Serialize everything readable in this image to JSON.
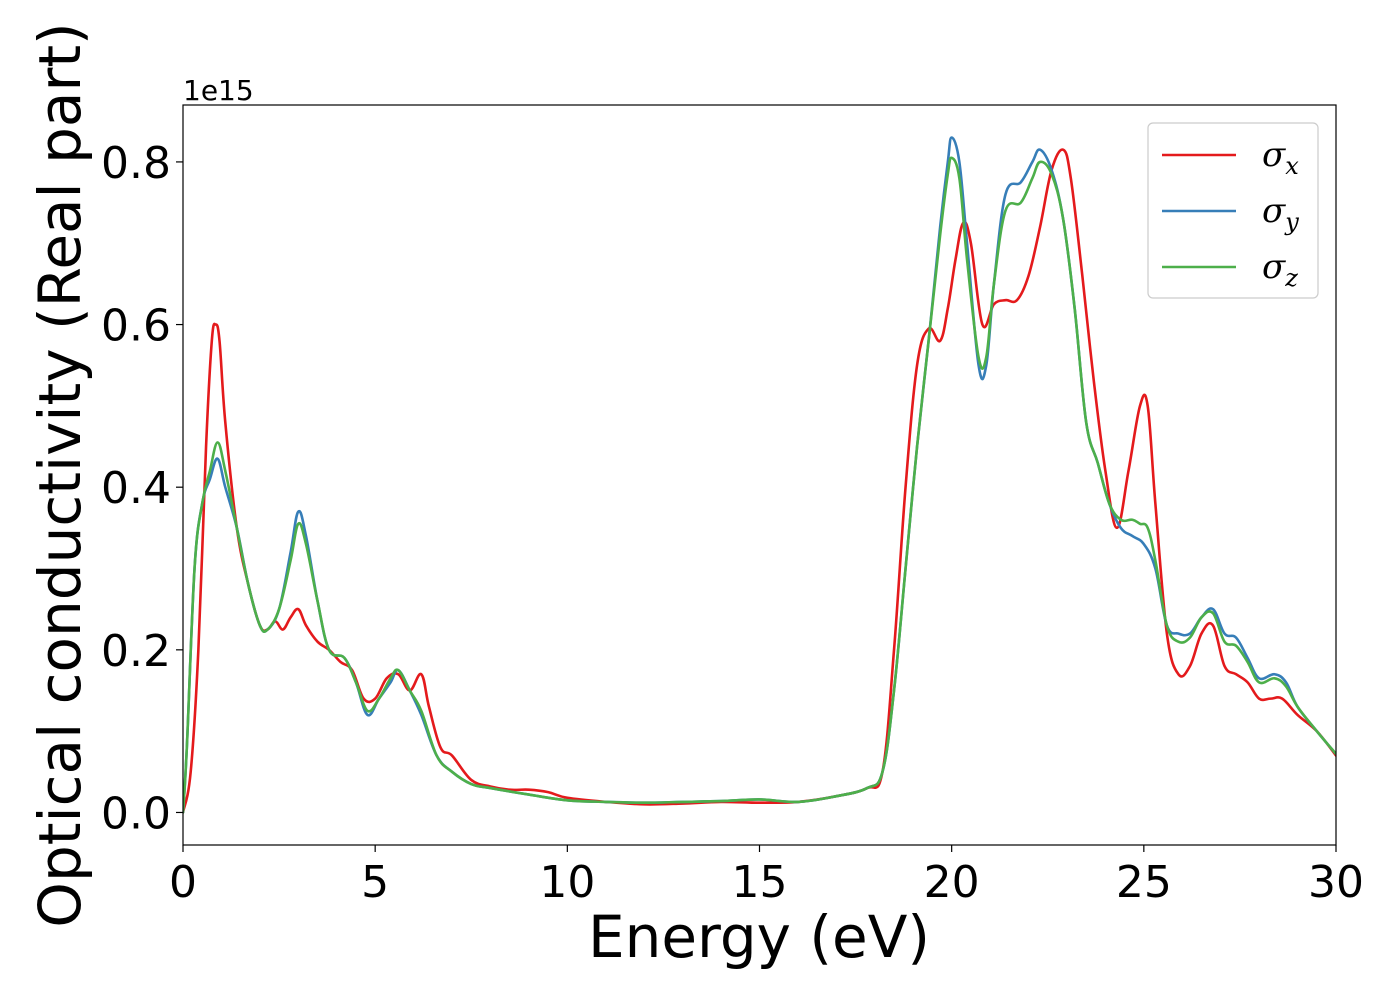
{
  "chart_data": {
    "type": "line",
    "xlabel": "Energy (eV)",
    "ylabel": "Optical conductivity (Real part)",
    "y_offset_text": "1e15",
    "xlim": [
      0,
      30
    ],
    "ylim": [
      -0.04,
      0.87
    ],
    "x_ticks": [
      0,
      5,
      10,
      15,
      20,
      25,
      30
    ],
    "x_tick_labels": [
      "0",
      "5",
      "10",
      "15",
      "20",
      "25",
      "30"
    ],
    "y_ticks": [
      0.0,
      0.2,
      0.4,
      0.6,
      0.8
    ],
    "y_tick_labels": [
      "0.0",
      "0.2",
      "0.4",
      "0.6",
      "0.8"
    ],
    "grid": false,
    "legend_position": "top-right",
    "series": [
      {
        "name": "σx",
        "symbol": "σ",
        "subscript": "x",
        "color": "#e41a1c",
        "points": [
          [
            0,
            0.0
          ],
          [
            0.2,
            0.05
          ],
          [
            0.4,
            0.2
          ],
          [
            0.6,
            0.45
          ],
          [
            0.75,
            0.58
          ],
          [
            0.85,
            0.6
          ],
          [
            0.95,
            0.58
          ],
          [
            1.1,
            0.48
          ],
          [
            1.4,
            0.35
          ],
          [
            1.7,
            0.28
          ],
          [
            2.0,
            0.23
          ],
          [
            2.2,
            0.225
          ],
          [
            2.4,
            0.235
          ],
          [
            2.6,
            0.225
          ],
          [
            2.8,
            0.24
          ],
          [
            3.0,
            0.25
          ],
          [
            3.2,
            0.23
          ],
          [
            3.5,
            0.21
          ],
          [
            3.8,
            0.2
          ],
          [
            4.1,
            0.185
          ],
          [
            4.4,
            0.175
          ],
          [
            4.7,
            0.14
          ],
          [
            5.0,
            0.14
          ],
          [
            5.3,
            0.165
          ],
          [
            5.6,
            0.17
          ],
          [
            5.9,
            0.15
          ],
          [
            6.2,
            0.17
          ],
          [
            6.4,
            0.13
          ],
          [
            6.7,
            0.08
          ],
          [
            7.0,
            0.07
          ],
          [
            7.5,
            0.04
          ],
          [
            8.0,
            0.032
          ],
          [
            8.5,
            0.028
          ],
          [
            9.0,
            0.028
          ],
          [
            9.5,
            0.025
          ],
          [
            10.0,
            0.018
          ],
          [
            11,
            0.013
          ],
          [
            12,
            0.01
          ],
          [
            13,
            0.011
          ],
          [
            14,
            0.013
          ],
          [
            15,
            0.012
          ],
          [
            16,
            0.013
          ],
          [
            17,
            0.02
          ],
          [
            17.8,
            0.03
          ],
          [
            18.2,
            0.05
          ],
          [
            18.5,
            0.2
          ],
          [
            18.8,
            0.4
          ],
          [
            19.1,
            0.55
          ],
          [
            19.4,
            0.595
          ],
          [
            19.7,
            0.58
          ],
          [
            19.9,
            0.62
          ],
          [
            20.1,
            0.68
          ],
          [
            20.3,
            0.725
          ],
          [
            20.5,
            0.7
          ],
          [
            20.8,
            0.6
          ],
          [
            21.1,
            0.625
          ],
          [
            21.4,
            0.63
          ],
          [
            21.7,
            0.63
          ],
          [
            22.0,
            0.66
          ],
          [
            22.3,
            0.72
          ],
          [
            22.6,
            0.79
          ],
          [
            22.9,
            0.815
          ],
          [
            23.1,
            0.78
          ],
          [
            23.4,
            0.66
          ],
          [
            23.7,
            0.53
          ],
          [
            24.0,
            0.42
          ],
          [
            24.3,
            0.35
          ],
          [
            24.6,
            0.42
          ],
          [
            24.9,
            0.5
          ],
          [
            25.1,
            0.5
          ],
          [
            25.3,
            0.38
          ],
          [
            25.6,
            0.22
          ],
          [
            25.9,
            0.17
          ],
          [
            26.2,
            0.18
          ],
          [
            26.5,
            0.22
          ],
          [
            26.8,
            0.23
          ],
          [
            27.1,
            0.18
          ],
          [
            27.4,
            0.17
          ],
          [
            27.7,
            0.16
          ],
          [
            28.0,
            0.14
          ],
          [
            28.3,
            0.14
          ],
          [
            28.6,
            0.14
          ],
          [
            29.0,
            0.12
          ],
          [
            29.5,
            0.1
          ],
          [
            30.0,
            0.07
          ]
        ]
      },
      {
        "name": "σy",
        "symbol": "σ",
        "subscript": "y",
        "color": "#377eb8",
        "points": [
          [
            0,
            0.0
          ],
          [
            0.1,
            0.08
          ],
          [
            0.3,
            0.3
          ],
          [
            0.5,
            0.38
          ],
          [
            0.7,
            0.41
          ],
          [
            0.9,
            0.435
          ],
          [
            1.1,
            0.4
          ],
          [
            1.4,
            0.35
          ],
          [
            1.7,
            0.28
          ],
          [
            2.0,
            0.23
          ],
          [
            2.2,
            0.225
          ],
          [
            2.5,
            0.25
          ],
          [
            2.8,
            0.32
          ],
          [
            3.0,
            0.37
          ],
          [
            3.2,
            0.34
          ],
          [
            3.5,
            0.26
          ],
          [
            3.8,
            0.2
          ],
          [
            4.2,
            0.19
          ],
          [
            4.5,
            0.16
          ],
          [
            4.8,
            0.12
          ],
          [
            5.1,
            0.14
          ],
          [
            5.4,
            0.16
          ],
          [
            5.6,
            0.175
          ],
          [
            5.9,
            0.15
          ],
          [
            6.2,
            0.12
          ],
          [
            6.6,
            0.07
          ],
          [
            7.0,
            0.05
          ],
          [
            7.5,
            0.035
          ],
          [
            8.0,
            0.03
          ],
          [
            9,
            0.022
          ],
          [
            10,
            0.015
          ],
          [
            11,
            0.013
          ],
          [
            12,
            0.012
          ],
          [
            13,
            0.013
          ],
          [
            14,
            0.014
          ],
          [
            15,
            0.016
          ],
          [
            16,
            0.013
          ],
          [
            17,
            0.02
          ],
          [
            17.8,
            0.03
          ],
          [
            18.2,
            0.05
          ],
          [
            18.5,
            0.15
          ],
          [
            18.8,
            0.3
          ],
          [
            19.1,
            0.45
          ],
          [
            19.4,
            0.58
          ],
          [
            19.7,
            0.72
          ],
          [
            19.9,
            0.8
          ],
          [
            20.0,
            0.83
          ],
          [
            20.2,
            0.8
          ],
          [
            20.4,
            0.7
          ],
          [
            20.7,
            0.55
          ],
          [
            20.9,
            0.55
          ],
          [
            21.1,
            0.65
          ],
          [
            21.4,
            0.76
          ],
          [
            21.8,
            0.775
          ],
          [
            22.1,
            0.8
          ],
          [
            22.3,
            0.815
          ],
          [
            22.6,
            0.79
          ],
          [
            22.9,
            0.73
          ],
          [
            23.2,
            0.62
          ],
          [
            23.5,
            0.48
          ],
          [
            23.8,
            0.43
          ],
          [
            24.1,
            0.38
          ],
          [
            24.4,
            0.35
          ],
          [
            24.7,
            0.34
          ],
          [
            25.0,
            0.33
          ],
          [
            25.3,
            0.3
          ],
          [
            25.6,
            0.23
          ],
          [
            25.9,
            0.22
          ],
          [
            26.2,
            0.22
          ],
          [
            26.5,
            0.24
          ],
          [
            26.8,
            0.25
          ],
          [
            27.1,
            0.22
          ],
          [
            27.4,
            0.215
          ],
          [
            27.7,
            0.19
          ],
          [
            28.0,
            0.165
          ],
          [
            28.4,
            0.17
          ],
          [
            28.7,
            0.16
          ],
          [
            29.0,
            0.13
          ],
          [
            29.5,
            0.1
          ],
          [
            30.0,
            0.072
          ]
        ]
      },
      {
        "name": "σz",
        "symbol": "σ",
        "subscript": "z",
        "color": "#4daf4a",
        "points": [
          [
            0,
            0.0
          ],
          [
            0.1,
            0.08
          ],
          [
            0.3,
            0.3
          ],
          [
            0.5,
            0.38
          ],
          [
            0.7,
            0.42
          ],
          [
            0.9,
            0.455
          ],
          [
            1.1,
            0.42
          ],
          [
            1.4,
            0.35
          ],
          [
            1.7,
            0.28
          ],
          [
            2.0,
            0.23
          ],
          [
            2.2,
            0.225
          ],
          [
            2.5,
            0.25
          ],
          [
            2.8,
            0.31
          ],
          [
            3.0,
            0.355
          ],
          [
            3.2,
            0.33
          ],
          [
            3.5,
            0.26
          ],
          [
            3.8,
            0.2
          ],
          [
            4.2,
            0.19
          ],
          [
            4.5,
            0.16
          ],
          [
            4.8,
            0.125
          ],
          [
            5.1,
            0.14
          ],
          [
            5.4,
            0.165
          ],
          [
            5.6,
            0.175
          ],
          [
            5.9,
            0.15
          ],
          [
            6.2,
            0.125
          ],
          [
            6.6,
            0.07
          ],
          [
            7.0,
            0.05
          ],
          [
            7.5,
            0.035
          ],
          [
            8.0,
            0.03
          ],
          [
            9,
            0.022
          ],
          [
            10,
            0.015
          ],
          [
            11,
            0.013
          ],
          [
            12,
            0.012
          ],
          [
            13,
            0.013
          ],
          [
            14,
            0.014
          ],
          [
            15,
            0.016
          ],
          [
            16,
            0.013
          ],
          [
            17,
            0.02
          ],
          [
            17.8,
            0.03
          ],
          [
            18.2,
            0.05
          ],
          [
            18.5,
            0.15
          ],
          [
            18.8,
            0.3
          ],
          [
            19.1,
            0.45
          ],
          [
            19.4,
            0.58
          ],
          [
            19.7,
            0.71
          ],
          [
            19.9,
            0.785
          ],
          [
            20.0,
            0.805
          ],
          [
            20.2,
            0.78
          ],
          [
            20.4,
            0.68
          ],
          [
            20.7,
            0.56
          ],
          [
            20.9,
            0.56
          ],
          [
            21.1,
            0.65
          ],
          [
            21.4,
            0.74
          ],
          [
            21.8,
            0.75
          ],
          [
            22.1,
            0.78
          ],
          [
            22.3,
            0.8
          ],
          [
            22.6,
            0.785
          ],
          [
            22.9,
            0.73
          ],
          [
            23.2,
            0.62
          ],
          [
            23.5,
            0.48
          ],
          [
            23.8,
            0.43
          ],
          [
            24.1,
            0.38
          ],
          [
            24.4,
            0.36
          ],
          [
            24.7,
            0.36
          ],
          [
            24.9,
            0.355
          ],
          [
            25.1,
            0.35
          ],
          [
            25.3,
            0.31
          ],
          [
            25.6,
            0.23
          ],
          [
            25.9,
            0.21
          ],
          [
            26.2,
            0.215
          ],
          [
            26.5,
            0.24
          ],
          [
            26.8,
            0.245
          ],
          [
            27.1,
            0.21
          ],
          [
            27.4,
            0.205
          ],
          [
            27.7,
            0.185
          ],
          [
            28.0,
            0.16
          ],
          [
            28.4,
            0.165
          ],
          [
            28.7,
            0.155
          ],
          [
            29.0,
            0.13
          ],
          [
            29.5,
            0.1
          ],
          [
            30.0,
            0.072
          ]
        ]
      }
    ]
  }
}
